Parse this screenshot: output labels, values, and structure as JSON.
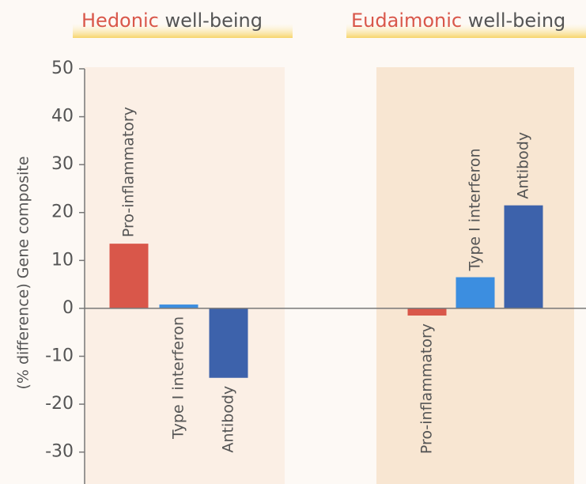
{
  "chart_data": {
    "type": "grouped_bar",
    "categories": [
      "Hedonic",
      "Eudaimonic"
    ],
    "category_suffix": "well-being",
    "y_axis_label": "(% difference) Gene composite",
    "series": [
      {
        "name": "Pro-inflammatory",
        "color": "#d9574a",
        "values": [
          13.5,
          -1.5
        ]
      },
      {
        "name": "Type I interferon",
        "color": "#3c8ee0",
        "values": [
          0.8,
          6.5
        ]
      },
      {
        "name": "Antibody",
        "color": "#3d62ab",
        "values": [
          -14.5,
          21.5
        ]
      }
    ],
    "ylim": [
      -36,
      50
    ],
    "yticks": [
      -30,
      -20,
      -10,
      0,
      10,
      20,
      30,
      40,
      50
    ]
  }
}
